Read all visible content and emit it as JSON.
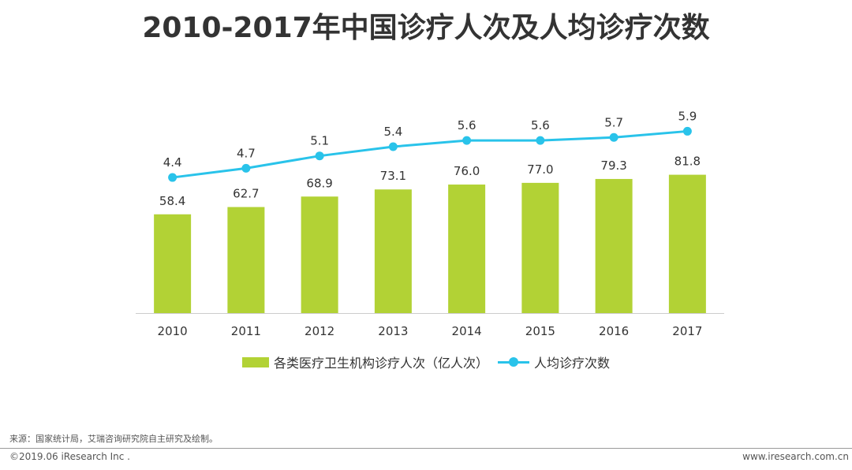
{
  "title": "2010-2017年中国诊疗人次及人均诊疗次数",
  "colors": {
    "bar": "#b2d235",
    "line": "#29c3ea",
    "axis": "#cccccc",
    "text": "#333333"
  },
  "chart_data": {
    "type": "bar+line",
    "title": "2010-2017年中国诊疗人次及人均诊疗次数",
    "categories": [
      "2010",
      "2011",
      "2012",
      "2013",
      "2014",
      "2015",
      "2016",
      "2017"
    ],
    "series": [
      {
        "name": "各类医疗卫生机构诊疗人次（亿人次）",
        "type": "bar",
        "values": [
          58.4,
          62.7,
          68.9,
          73.1,
          76.0,
          77.0,
          79.3,
          81.8
        ],
        "labels": [
          "58.4",
          "62.7",
          "68.9",
          "73.1",
          "76.0",
          "77.0",
          "79.3",
          "81.8"
        ]
      },
      {
        "name": "人均诊疗次数",
        "type": "line",
        "values": [
          4.4,
          4.7,
          5.1,
          5.4,
          5.6,
          5.6,
          5.7,
          5.9
        ],
        "labels": [
          "4.4",
          "4.7",
          "5.1",
          "5.4",
          "5.6",
          "5.6",
          "5.7",
          "5.9"
        ]
      }
    ],
    "bar_axis_range": [
      0,
      138.5
    ],
    "line_axis_range": [
      0,
      7.6
    ],
    "legend": "bottom",
    "grid": false
  },
  "legend": {
    "bar_label": "各类医疗卫生机构诊疗人次（亿人次）",
    "line_label": "人均诊疗次数"
  },
  "footer": {
    "source": "来源：国家统计局，艾瑞咨询研究院自主研究及绘制。",
    "copyright": "©2019.06 iResearch Inc .",
    "site": "www.iresearch.com.cn"
  }
}
